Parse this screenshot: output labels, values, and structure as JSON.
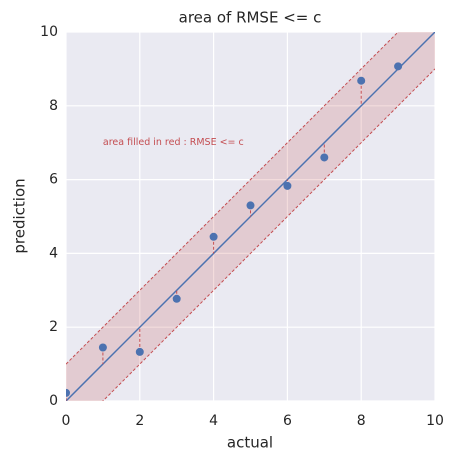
{
  "chart_data": {
    "type": "scatter",
    "title": "area of RMSE <= c",
    "x_label": "actual",
    "y_label": "prediction",
    "x": [
      0,
      1,
      2,
      3,
      4,
      5,
      6,
      7,
      8,
      9
    ],
    "series": [
      {
        "color": "#4c72b0",
        "values": [
          0.22,
          1.45,
          1.33,
          2.77,
          4.45,
          5.3,
          5.83,
          6.6,
          8.68,
          9.07
        ]
      }
    ],
    "band": 1,
    "band_color": "#c44e52",
    "annotation": {
      "text": "area filled in red : RMSE <= c",
      "x": 1,
      "y": 7
    },
    "xlim": [
      0,
      10
    ],
    "ylim": [
      0,
      10
    ],
    "xticks": [
      0,
      2,
      4,
      6,
      8,
      10
    ],
    "yticks": [
      0,
      2,
      4,
      6,
      8,
      10
    ],
    "grid": true
  }
}
